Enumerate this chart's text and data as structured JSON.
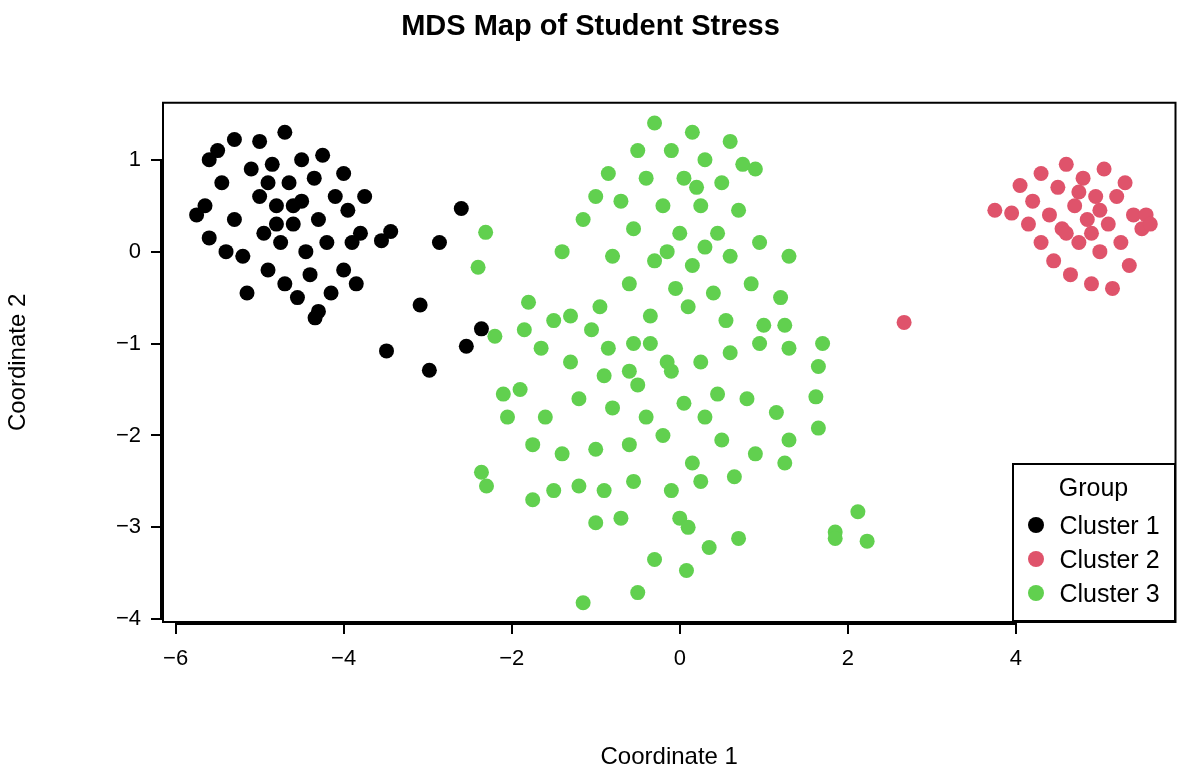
{
  "chart_data": {
    "type": "scatter",
    "title": "MDS Map of Student Stress",
    "xlabel": "Coordinate 1",
    "ylabel": "Coordinate 2",
    "legend_title": "Group",
    "legend": "bottom right",
    "marker": "circle",
    "grid": false,
    "xlim": [
      -6.15,
      5.9
    ],
    "ylim": [
      -4.03,
      1.62
    ],
    "xticks": [
      -6,
      -4,
      -2,
      0,
      2,
      4
    ],
    "yticks": [
      -4,
      -3,
      -2,
      -1,
      0,
      1
    ],
    "series": [
      {
        "name": "Cluster 1",
        "color": "#000000",
        "x": [
          -5.75,
          -5.65,
          -5.6,
          -5.6,
          -5.5,
          -5.45,
          -5.3,
          -5.3,
          -5.2,
          -5.1,
          -5.0,
          -5.0,
          -4.95,
          -4.9,
          -4.85,
          -4.8,
          -4.75,
          -4.7,
          -4.7,
          -4.65,
          -4.6,
          -4.55,
          -4.5,
          -4.5,
          -4.45,
          -4.4,
          -4.35,
          -4.3,
          -4.3,
          -4.25,
          -4.2,
          -4.15,
          -4.1,
          -4.0,
          -4.0,
          -3.95,
          -3.9,
          -3.85,
          -3.8,
          -3.75,
          -5.15,
          -5.4,
          -4.9,
          -4.6,
          -4.8,
          -3.49,
          -2.98,
          -2.86,
          -2.6,
          -3.09,
          -2.54,
          -2.36,
          -3.44,
          -3.55,
          -4.34
        ],
        "values": [
          0.4,
          0.5,
          0.15,
          1.0,
          1.1,
          0.75,
          1.22,
          0.35,
          -0.05,
          0.9,
          1.2,
          0.6,
          0.2,
          -0.2,
          0.95,
          0.5,
          0.1,
          1.3,
          -0.35,
          0.75,
          0.3,
          -0.5,
          1.0,
          0.55,
          0.0,
          -0.25,
          0.8,
          -0.65,
          0.35,
          1.05,
          0.1,
          -0.45,
          0.6,
          0.85,
          -0.2,
          0.45,
          0.1,
          -0.35,
          0.2,
          0.6,
          -0.45,
          0.0,
          0.75,
          0.5,
          0.3,
          -1.08,
          -1.29,
          0.1,
          0.47,
          -0.58,
          -1.03,
          -0.84,
          0.22,
          0.12,
          -0.72
        ]
      },
      {
        "name": "Cluster 2",
        "color": "#df536b",
        "x": [
          3.75,
          3.95,
          4.05,
          4.15,
          4.2,
          4.3,
          4.3,
          4.4,
          4.45,
          4.5,
          4.55,
          4.6,
          4.65,
          4.7,
          4.75,
          4.8,
          4.85,
          4.9,
          4.95,
          5.0,
          5.05,
          5.1,
          5.15,
          5.2,
          5.25,
          5.3,
          5.35,
          5.4,
          5.5,
          5.55,
          5.6,
          4.6,
          4.9,
          5.0,
          4.75,
          2.67
        ],
        "values": [
          0.45,
          0.42,
          0.72,
          0.3,
          0.55,
          0.85,
          0.1,
          0.4,
          -0.1,
          0.7,
          0.25,
          0.95,
          -0.25,
          0.5,
          0.1,
          0.8,
          0.35,
          -0.35,
          0.6,
          0.0,
          0.9,
          0.3,
          -0.4,
          0.6,
          0.1,
          0.75,
          -0.15,
          0.4,
          0.25,
          0.4,
          0.3,
          0.2,
          0.2,
          0.45,
          0.65,
          -0.77
        ]
      },
      {
        "name": "Cluster 3",
        "color": "#61d04f",
        "x": [
          -0.3,
          0.15,
          0.6,
          -0.5,
          -0.1,
          0.3,
          0.75,
          -0.85,
          -0.4,
          0.05,
          0.5,
          0.9,
          -0.7,
          -0.2,
          0.25,
          0.7,
          -1.15,
          -0.55,
          0.0,
          0.45,
          0.95,
          -1.4,
          -0.8,
          -0.3,
          0.15,
          0.6,
          1.3,
          -0.6,
          -0.05,
          0.4,
          0.85,
          1.2,
          -0.95,
          -0.35,
          0.1,
          0.55,
          1.0,
          1.25,
          -1.0,
          0.3,
          -0.15,
          0.2,
          -1.8,
          -1.5,
          -1.85,
          -1.65,
          -1.3,
          -1.05,
          -1.3,
          -0.85,
          -0.55,
          -0.9,
          -0.5,
          -0.1,
          0.25,
          0.6,
          0.95,
          1.3,
          -2.1,
          -1.9,
          -1.6,
          -1.2,
          -0.8,
          -0.4,
          0.05,
          0.45,
          0.8,
          1.15,
          -2.05,
          -1.75,
          -1.4,
          -1.0,
          -0.6,
          -0.2,
          0.15,
          0.5,
          0.9,
          1.3,
          1.25,
          -1.5,
          -1.2,
          -0.9,
          -0.55,
          -0.1,
          0.25,
          0.65,
          -1.75,
          -1.0,
          -0.7,
          0.0,
          0.1,
          -0.6,
          0.3,
          -0.35,
          -2.31,
          -2.4,
          -2.2,
          -2.36,
          -2.3,
          -1.15,
          -0.5,
          0.08,
          0.35,
          -0.3,
          1.85,
          1.85,
          2.12,
          2.23,
          1.7,
          1.65,
          1.62,
          1.65,
          0.7,
          -0.15
        ],
        "values": [
          1.4,
          1.3,
          1.2,
          1.1,
          1.1,
          1.0,
          0.95,
          0.85,
          0.8,
          0.8,
          0.75,
          0.9,
          0.55,
          0.5,
          0.5,
          0.45,
          0.35,
          0.25,
          0.2,
          0.2,
          0.1,
          0.0,
          -0.05,
          -0.1,
          -0.15,
          -0.05,
          -0.05,
          -0.35,
          -0.4,
          -0.45,
          -0.35,
          -0.5,
          -0.6,
          -0.7,
          -0.6,
          -0.75,
          -0.8,
          -0.8,
          0.6,
          0.05,
          0.0,
          0.7,
          -0.55,
          -0.75,
          -0.85,
          -1.05,
          -0.7,
          -0.85,
          -1.2,
          -1.05,
          -1.0,
          -1.35,
          -1.45,
          -1.3,
          -1.2,
          -1.1,
          -1.0,
          -1.05,
          -1.55,
          -1.5,
          -1.8,
          -1.6,
          -1.7,
          -1.8,
          -1.65,
          -1.55,
          -1.6,
          -1.75,
          -1.8,
          -2.1,
          -2.2,
          -2.15,
          -2.1,
          -2.0,
          -2.3,
          -2.05,
          -2.2,
          -2.05,
          -2.3,
          -2.6,
          -2.55,
          -2.6,
          -2.5,
          -2.6,
          -2.5,
          -2.45,
          -2.7,
          -2.95,
          -2.9,
          -2.9,
          -3.0,
          -1.3,
          -1.8,
          -1.0,
          0.21,
          -0.17,
          -0.92,
          -2.4,
          -2.55,
          -3.82,
          -3.71,
          -3.47,
          -3.22,
          -3.35,
          -3.05,
          -3.12,
          -2.83,
          -3.15,
          -1.0,
          -1.25,
          -1.58,
          -1.92,
          -3.12,
          -1.2
        ]
      }
    ]
  }
}
